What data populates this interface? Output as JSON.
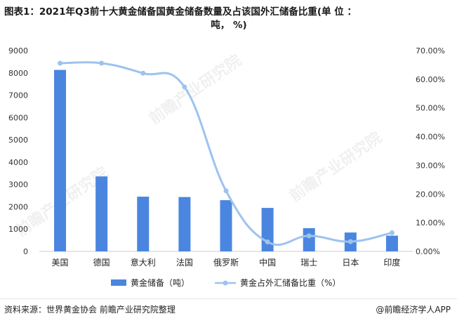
{
  "title": {
    "line1": "图表1：2021年Q3前十大黄金储备国黄金储备数量及占该国外汇储备比重(单 位 ：",
    "line2": "吨， %)"
  },
  "source": "资料来源：世界黄金协会 前瞻产业研究院整理",
  "app": "@前瞻经济学人APP",
  "watermark": "前瞻产业研究院",
  "colors": {
    "bar": "#4a86df",
    "line": "#9dc3ef",
    "axis": "#cccccc"
  },
  "chart_data": {
    "type": "bar+line",
    "categories": [
      "美国",
      "德国",
      "意大利",
      "法国",
      "俄罗斯",
      "中国",
      "瑞士",
      "日本",
      "印度"
    ],
    "series": [
      {
        "name": "黄金储备（吨）",
        "type": "bar",
        "axis": "left",
        "values": [
          8133,
          3359,
          2452,
          2436,
          2295,
          1948,
          1040,
          846,
          705
        ]
      },
      {
        "name": "黄金占外汇储备比重（%）",
        "type": "line",
        "axis": "right",
        "values": [
          65.6,
          65.6,
          62.1,
          57.3,
          21.1,
          3.3,
          5.4,
          3.4,
          6.5
        ]
      }
    ],
    "y_left": {
      "ylim": [
        0,
        9000
      ],
      "ticks": [
        "0",
        "1000",
        "2000",
        "3000",
        "4000",
        "5000",
        "6000",
        "7000",
        "8000",
        "9000"
      ]
    },
    "y_right": {
      "ylim": [
        0,
        70
      ],
      "ticks": [
        "0.00%",
        "10.00%",
        "20.00%",
        "30.00%",
        "40.00%",
        "50.00%",
        "60.00%",
        "70.00%"
      ]
    },
    "legend": "bottom",
    "grid": false
  }
}
